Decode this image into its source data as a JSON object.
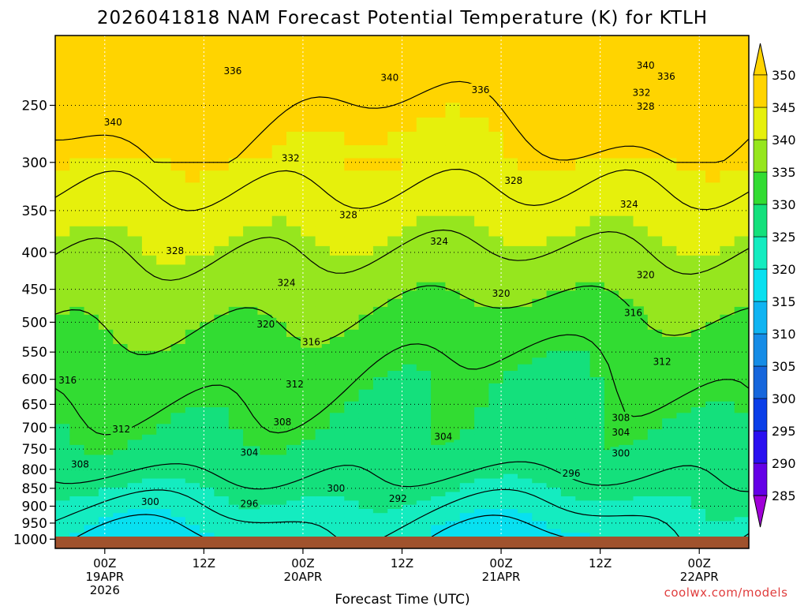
{
  "chart_data": {
    "type": "heatmap",
    "title": "2026041818 NAM Forecast Potential Temperature (K) for KTLH",
    "xlabel": "Forecast Time (UTC)",
    "ylabel": "",
    "credit": "coolwx.com/models",
    "units": "K",
    "x_ticks": [
      {
        "hour": 6,
        "line1": "00Z",
        "line2": "19APR",
        "line3": "2026"
      },
      {
        "hour": 18,
        "line1": "12Z",
        "line2": "",
        "line3": ""
      },
      {
        "hour": 30,
        "line1": "00Z",
        "line2": "20APR",
        "line3": ""
      },
      {
        "hour": 42,
        "line1": "12Z",
        "line2": "",
        "line3": ""
      },
      {
        "hour": 54,
        "line1": "00Z",
        "line2": "21APR",
        "line3": ""
      },
      {
        "hour": 66,
        "line1": "12Z",
        "line2": "",
        "line3": ""
      },
      {
        "hour": 78,
        "line1": "00Z",
        "line2": "22APR",
        "line3": ""
      }
    ],
    "xlim_hours": [
      0,
      84
    ],
    "y_ticks": [
      250,
      300,
      350,
      400,
      450,
      500,
      550,
      600,
      650,
      700,
      750,
      800,
      850,
      900,
      950,
      1000
    ],
    "ylim_hpa": [
      1030,
      200
    ],
    "colorbar": {
      "levels": [
        285,
        290,
        295,
        300,
        305,
        310,
        315,
        320,
        325,
        330,
        335,
        340,
        345,
        350
      ],
      "colors": [
        "#a000d8",
        "#6400e6",
        "#2a10f0",
        "#0a3ee8",
        "#1666dc",
        "#168ce6",
        "#10b4f2",
        "#08e0f0",
        "#14ecc0",
        "#14e07c",
        "#32dc32",
        "#96e61e",
        "#e6f00c",
        "#ffd400"
      ]
    },
    "contour_labels": [
      {
        "value": "336",
        "hour": 21.5,
        "hpa": 224
      },
      {
        "value": "340",
        "hour": 40.5,
        "hpa": 229
      },
      {
        "value": "336",
        "hour": 51.5,
        "hpa": 238
      },
      {
        "value": "340",
        "hour": 71.5,
        "hpa": 220
      },
      {
        "value": "336",
        "hour": 74.0,
        "hpa": 228
      },
      {
        "value": "332",
        "hour": 71.0,
        "hpa": 240
      },
      {
        "value": "328",
        "hour": 71.5,
        "hpa": 251
      },
      {
        "value": "340",
        "hour": 7.0,
        "hpa": 264
      },
      {
        "value": "332",
        "hour": 28.5,
        "hpa": 296
      },
      {
        "value": "328",
        "hour": 55.5,
        "hpa": 318
      },
      {
        "value": "328",
        "hour": 35.5,
        "hpa": 355
      },
      {
        "value": "324",
        "hour": 69.5,
        "hpa": 343
      },
      {
        "value": "324",
        "hour": 46.5,
        "hpa": 386
      },
      {
        "value": "328",
        "hour": 14.5,
        "hpa": 398
      },
      {
        "value": "320",
        "hour": 71.5,
        "hpa": 430
      },
      {
        "value": "324",
        "hour": 28.0,
        "hpa": 441
      },
      {
        "value": "320",
        "hour": 54.0,
        "hpa": 456
      },
      {
        "value": "316",
        "hour": 70.0,
        "hpa": 485
      },
      {
        "value": "320",
        "hour": 25.5,
        "hpa": 503
      },
      {
        "value": "316",
        "hour": 31.0,
        "hpa": 533
      },
      {
        "value": "312",
        "hour": 73.5,
        "hpa": 567
      },
      {
        "value": "316",
        "hour": 1.5,
        "hpa": 602
      },
      {
        "value": "312",
        "hour": 29.0,
        "hpa": 610
      },
      {
        "value": "308",
        "hour": 68.5,
        "hpa": 679
      },
      {
        "value": "312",
        "hour": 8.0,
        "hpa": 704
      },
      {
        "value": "308",
        "hour": 27.5,
        "hpa": 688
      },
      {
        "value": "304",
        "hour": 47.0,
        "hpa": 721
      },
      {
        "value": "304",
        "hour": 68.5,
        "hpa": 711
      },
      {
        "value": "304",
        "hour": 23.5,
        "hpa": 758
      },
      {
        "value": "300",
        "hour": 68.5,
        "hpa": 760
      },
      {
        "value": "308",
        "hour": 3.0,
        "hpa": 787
      },
      {
        "value": "296",
        "hour": 62.5,
        "hpa": 811
      },
      {
        "value": "300",
        "hour": 34.0,
        "hpa": 850
      },
      {
        "value": "292",
        "hour": 41.5,
        "hpa": 879
      },
      {
        "value": "300",
        "hour": 11.5,
        "hpa": 888
      },
      {
        "value": "296",
        "hour": 23.5,
        "hpa": 893
      }
    ]
  }
}
